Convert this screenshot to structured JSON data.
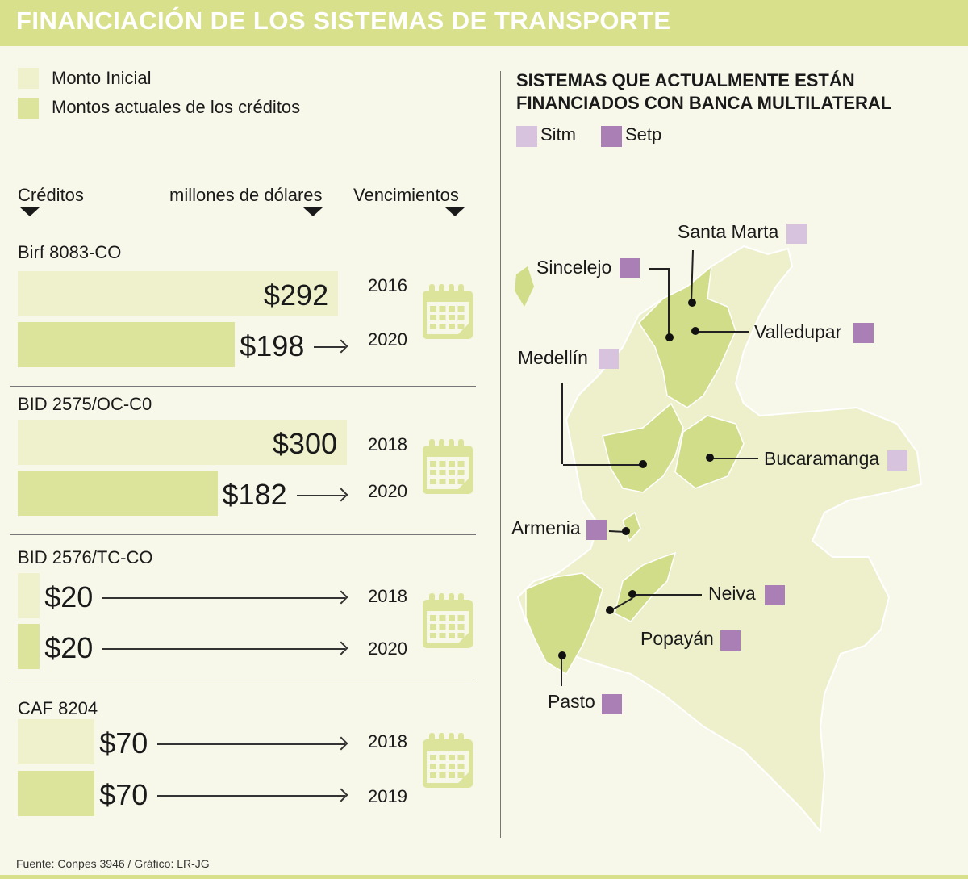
{
  "title": "FINANCIACIÓN DE LOS SISTEMAS DE TRANSPORTE",
  "legend": {
    "initial": "Monto Inicial",
    "current": "Montos actuales de los créditos"
  },
  "headers": {
    "credits": "Créditos",
    "units": "millones de dólares",
    "maturities": "Vencimientos"
  },
  "colors": {
    "initial": "#eff1cd",
    "current": "#dce39a",
    "sitm": "#d8c3df",
    "setp": "#a97fb5",
    "map_base": "#eef0cc",
    "map_financed": "#d2dd8a"
  },
  "chart_data": {
    "type": "bar",
    "orientation": "horizontal",
    "unit": "millones de dólares",
    "categories": [
      "Birf 8083-CO",
      "BID 2575/OC-C0",
      "BID 2576/TC-CO",
      "CAF 8204"
    ],
    "series": [
      {
        "name": "Monto Inicial",
        "values": [
          292,
          300,
          20,
          70
        ],
        "labels": [
          "$292",
          "$300",
          "$20",
          "$70"
        ],
        "maturities": [
          "2016",
          "2018",
          "2018",
          "2018"
        ]
      },
      {
        "name": "Montos actuales de los créditos",
        "values": [
          198,
          182,
          20,
          70
        ],
        "labels": [
          "$198",
          "$182",
          "$20",
          "$70"
        ],
        "maturities": [
          "2020",
          "2020",
          "2020",
          "2019"
        ]
      }
    ]
  },
  "map": {
    "title_line1": "SISTEMAS QUE ACTUALMENTE ESTÁN",
    "title_line2": "FINANCIADOS CON BANCA MULTILATERAL",
    "legend": {
      "sitm": "Sitm",
      "setp": "Setp"
    },
    "cities": [
      {
        "name": "Santa Marta",
        "type": "sitm"
      },
      {
        "name": "Sincelejo",
        "type": "setp"
      },
      {
        "name": "Valledupar",
        "type": "setp"
      },
      {
        "name": "Medellín",
        "type": "sitm"
      },
      {
        "name": "Bucaramanga",
        "type": "sitm"
      },
      {
        "name": "Armenia",
        "type": "setp"
      },
      {
        "name": "Neiva",
        "type": "setp"
      },
      {
        "name": "Popayán",
        "type": "setp"
      },
      {
        "name": "Pasto",
        "type": "setp"
      }
    ]
  },
  "source": "Fuente: Conpes 3946 / Gráfico: LR-JG"
}
